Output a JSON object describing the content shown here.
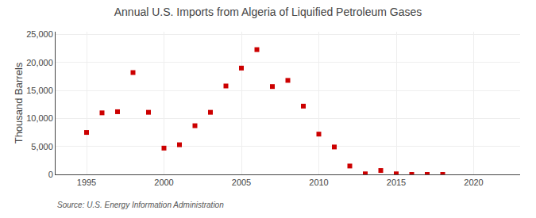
{
  "chart_data": {
    "type": "scatter",
    "title": "Annual U.S. Imports from Algeria of Liquified Petroleum Gases",
    "ylabel": "Thousand Barrels",
    "source": "Source: U.S. Energy Information Administration",
    "x": [
      1995,
      1996,
      1997,
      1998,
      1999,
      2000,
      2001,
      2002,
      2003,
      2004,
      2005,
      2006,
      2007,
      2008,
      2009,
      2010,
      2011,
      2012,
      2013,
      2014,
      2015,
      2016,
      2017,
      2018
    ],
    "values": [
      7500,
      11000,
      11200,
      18200,
      11100,
      4700,
      5300,
      8700,
      11100,
      15800,
      19000,
      22300,
      15700,
      16800,
      12200,
      7200,
      4900,
      1500,
      100,
      700,
      100,
      0,
      0,
      0
    ],
    "color": "#cc0000",
    "marker": "square",
    "xlim": [
      1993,
      2023
    ],
    "xticks": [
      1995,
      2000,
      2005,
      2010,
      2015,
      2020
    ],
    "ylim": [
      0,
      25500
    ],
    "yticks": [
      0,
      {
        "value": 5000,
        "label": "5,000"
      },
      {
        "value": 10000,
        "label": "10,000"
      },
      {
        "value": 15000,
        "label": "15,000"
      },
      {
        "value": 20000,
        "label": "20,000"
      },
      {
        "value": 25000,
        "label": "25,000"
      }
    ],
    "grid": true
  }
}
